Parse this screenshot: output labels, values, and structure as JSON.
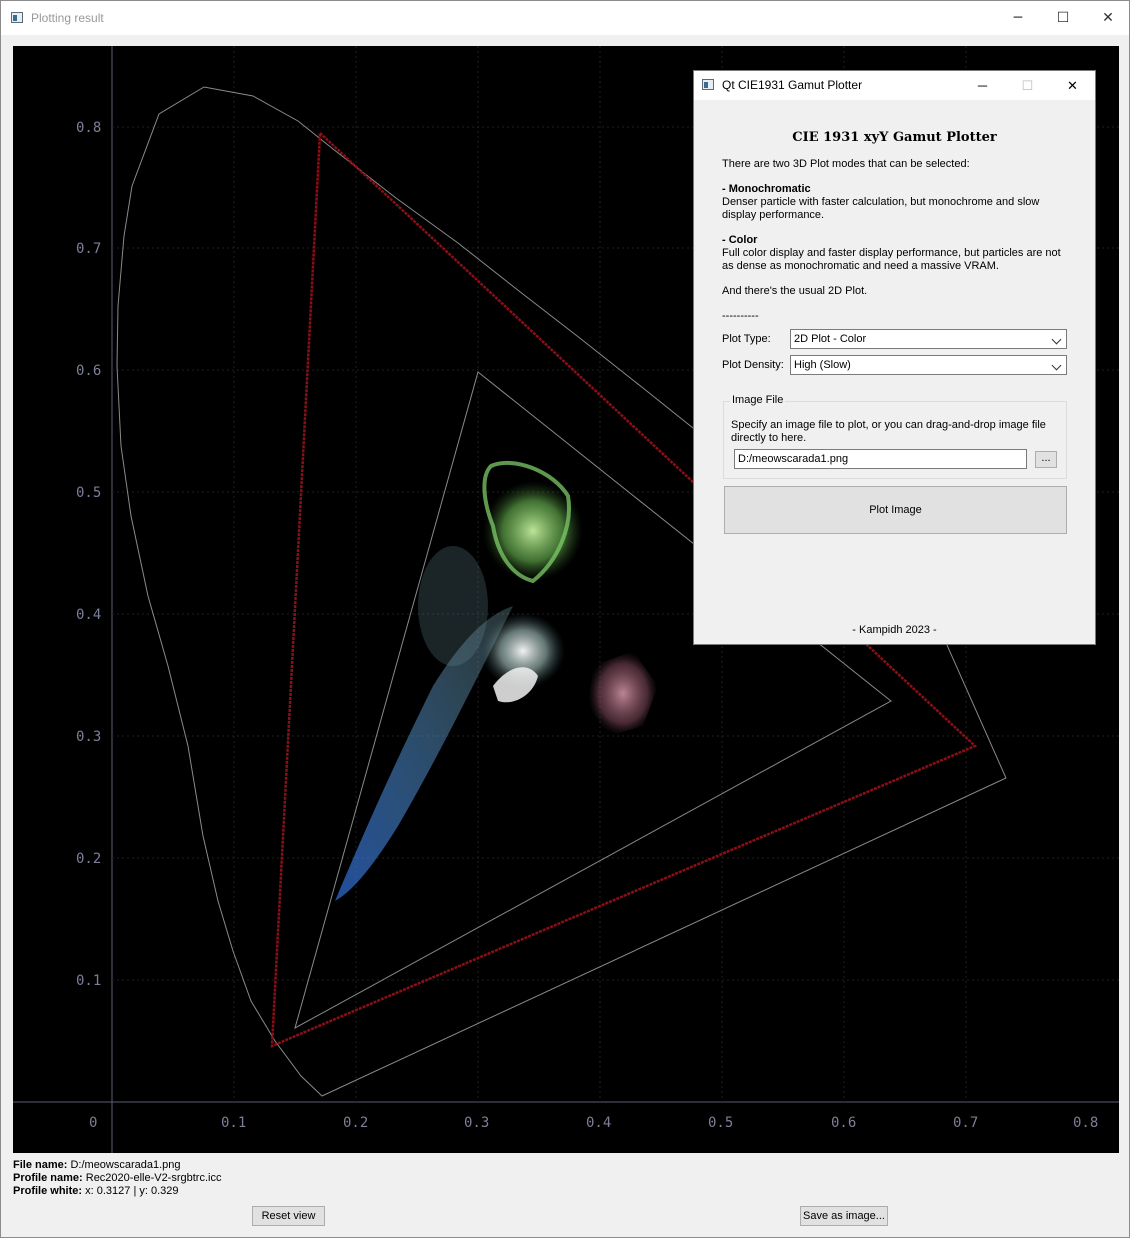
{
  "window": {
    "title": "Plotting result",
    "minimize": "─",
    "maximize": "☐",
    "close": "✕"
  },
  "plot": {
    "y_ticks": [
      "0.8",
      "0.7",
      "0.6",
      "0.5",
      "0.4",
      "0.3",
      "0.2",
      "0.1"
    ],
    "x_ticks": [
      "0",
      "0.1",
      "0.2",
      "0.3",
      "0.4",
      "0.5",
      "0.6",
      "0.7",
      "0.8"
    ],
    "colors": {
      "background": "#000000",
      "locus": "#8a8a8a",
      "gamut": "#7a0d12",
      "axis": "#5c6070"
    }
  },
  "info": {
    "file_name_label": "File name:",
    "file_name": "D:/meowscarada1.png",
    "profile_name_label": "Profile name:",
    "profile_name": "Rec2020-elle-V2-srgbtrc.icc",
    "profile_white_label": "Profile white:",
    "profile_white": "x: 0.3127 | y: 0.329"
  },
  "buttons": {
    "reset_view": "Reset view",
    "save_as_image": "Save as image..."
  },
  "dialog": {
    "title": "Qt CIE1931 Gamut Plotter",
    "minimize": "─",
    "maximize": "☐",
    "close": "✕",
    "heading": "CIE 1931 xyY Gamut Plotter",
    "intro": "There are two 3D Plot modes that can be selected:",
    "mono_title": "- Monochromatic",
    "mono_desc": "Denser particle with faster calculation, but monochrome and slow display performance.",
    "color_title": "- Color",
    "color_desc": "Full color display and faster display performance, but particles are not as dense as monochromatic and need a massive VRAM.",
    "usual_2d": "And there's the usual 2D Plot.",
    "separator": "----------",
    "plot_type_label": "Plot Type:",
    "plot_type_value": "2D Plot - Color",
    "plot_density_label": "Plot Density:",
    "plot_density_value": "High (Slow)",
    "image_file_group": "Image File",
    "image_file_hint": "Specify an image file to plot, or you can drag-and-drop image file directly to here.",
    "image_file_path": "D:/meowscarada1.png",
    "browse_label": "...",
    "plot_image_label": "Plot Image",
    "footer": "- Kampidh 2023 -"
  }
}
